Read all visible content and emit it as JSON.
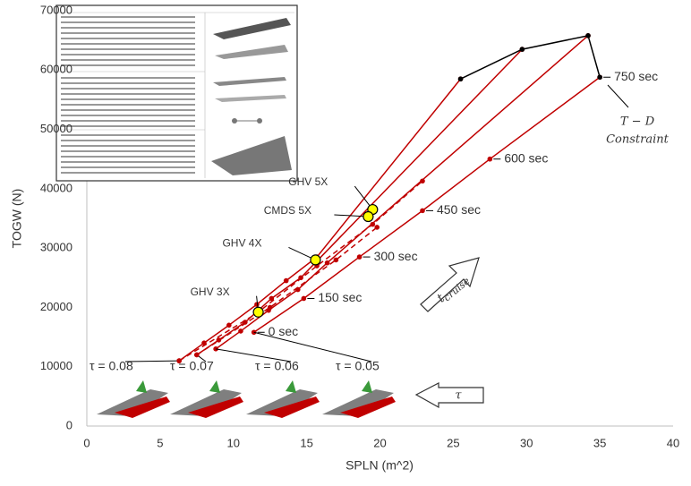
{
  "chart_data": {
    "type": "line",
    "xlabel": "SPLN (m^2)",
    "ylabel": "TOGW (N)",
    "xlim": [
      0,
      40
    ],
    "xticks": [
      0,
      5,
      10,
      15,
      20,
      25,
      30,
      35,
      40
    ],
    "ylim": [
      0,
      70000
    ],
    "yticks": [
      0,
      10000,
      20000,
      30000,
      40000,
      50000,
      60000,
      70000
    ],
    "grid": false,
    "series": [
      {
        "name": "τ = 0.08",
        "color": "#c00000",
        "x": [
          6.3,
          8.0,
          9.7,
          11.6,
          13.6,
          15.7,
          25.5
        ],
        "values": [
          11000,
          14000,
          17000,
          20500,
          24500,
          28500,
          58500
        ]
      },
      {
        "name": "τ = 0.07",
        "color": "#c00000",
        "x": [
          7.5,
          9.0,
          10.8,
          12.6,
          14.6,
          29.7
        ],
        "values": [
          12000,
          14500,
          17500,
          21500,
          25000,
          63500
        ]
      },
      {
        "name": "τ = 0.06",
        "color": "#c00000",
        "x": [
          8.8,
          10.5,
          12.4,
          14.4,
          16.4,
          34.2
        ],
        "values": [
          13000,
          16000,
          19500,
          23000,
          27500,
          65800
        ]
      },
      {
        "name": "τ = 0.05",
        "color": "#c00000",
        "x": [
          11.4,
          14.8,
          18.6,
          22.9,
          27.5,
          35.0
        ],
        "values": [
          15800,
          21500,
          28500,
          36300,
          45000,
          58800
        ],
        "point_labels": [
          "0 sec",
          "150 sec",
          "300 sec",
          "450 sec",
          "600 sec",
          "750 sec"
        ]
      },
      {
        "color": "#c00000",
        "dashed": true,
        "x": [
          6.3,
          11.6,
          15.7,
          19.5,
          22.9
        ],
        "values": [
          11000,
          19000,
          27000,
          34000,
          41300
        ]
      },
      {
        "color": "#c00000",
        "dashed": true,
        "x": [
          7.5,
          12.5,
          17.0,
          19.8
        ],
        "values": [
          12000,
          20000,
          28000,
          33500
        ]
      },
      {
        "color": "#000000",
        "x": [
          25.5,
          29.7,
          34.2,
          35.0
        ],
        "values": [
          58500,
          63500,
          65800,
          58800
        ]
      }
    ],
    "highlights": {
      "color": "#ffff00",
      "labels": [
        "GHV 3X",
        "GHV 4X",
        "GHV 5X",
        "CMDS 5X"
      ],
      "x": [
        11.7,
        15.6,
        19.5,
        19.2
      ],
      "values": [
        19200,
        28000,
        36500,
        35300
      ]
    },
    "constraint_label": [
      "T − D",
      "Constraint"
    ],
    "t_cruise": {
      "symbol": "t",
      "subscript": "cruise"
    },
    "tau_arrow": "τ"
  }
}
